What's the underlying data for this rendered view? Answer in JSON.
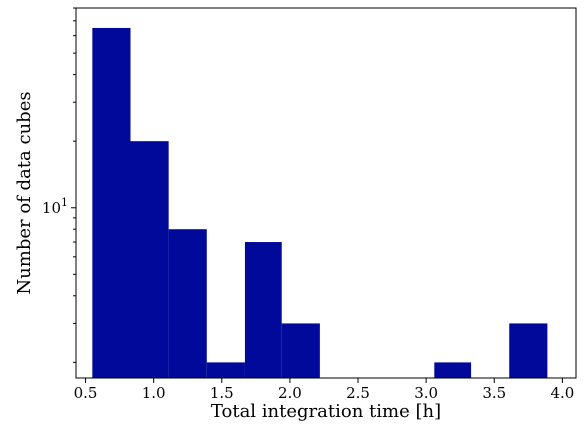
{
  "chart_data": {
    "type": "bar",
    "kind": "histogram",
    "bar_color": "#000999",
    "xlabel": "Total integration time [h]",
    "ylabel": "Number of data cubes",
    "xlim": [
      0.43,
      4.1
    ],
    "ylim": [
      1.7,
      80
    ],
    "yscale": "log",
    "grid": false,
    "xticks": [
      0.5,
      1.0,
      1.5,
      2.0,
      2.5,
      3.0,
      3.5,
      4.0
    ],
    "xtick_labels": [
      "0.5",
      "1.0",
      "1.5",
      "2.0",
      "2.5",
      "3.0",
      "3.5",
      "4.0"
    ],
    "yticks": [
      {
        "value": 10,
        "base": "10",
        "exp": "1"
      }
    ],
    "bins": [
      {
        "x0": 0.55,
        "x1": 0.83,
        "value": 65
      },
      {
        "x0": 0.83,
        "x1": 1.11,
        "value": 20
      },
      {
        "x0": 1.11,
        "x1": 1.39,
        "value": 8
      },
      {
        "x0": 1.39,
        "x1": 1.67,
        "value": 2
      },
      {
        "x0": 1.67,
        "x1": 1.94,
        "value": 7
      },
      {
        "x0": 1.94,
        "x1": 2.22,
        "value": 3
      },
      {
        "x0": 2.22,
        "x1": 2.5,
        "value": 0
      },
      {
        "x0": 2.5,
        "x1": 2.78,
        "value": 0
      },
      {
        "x0": 2.78,
        "x1": 3.06,
        "value": 0
      },
      {
        "x0": 3.06,
        "x1": 3.33,
        "value": 2
      },
      {
        "x0": 3.33,
        "x1": 3.61,
        "value": 0
      },
      {
        "x0": 3.61,
        "x1": 3.89,
        "value": 3
      }
    ]
  }
}
